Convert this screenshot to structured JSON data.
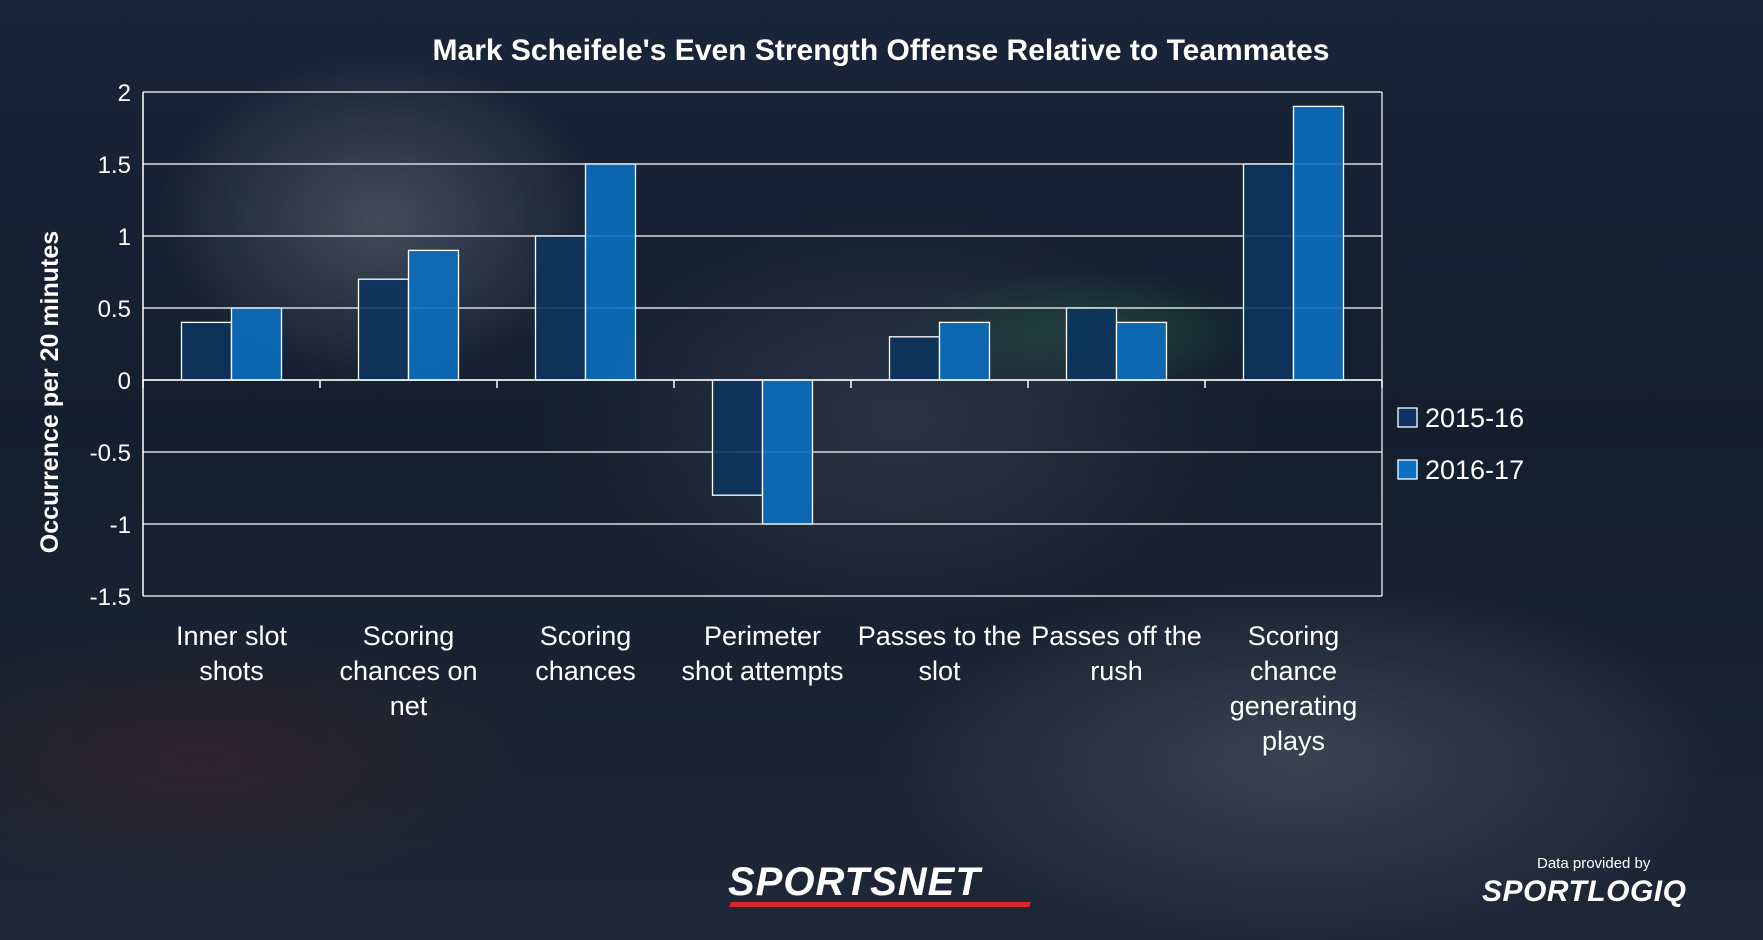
{
  "chart_data": {
    "type": "bar",
    "title": "Mark Scheifele's Even Strength Offense Relative to Teammates",
    "ylabel": "Occurrence per 20 minutes",
    "xlabel": "",
    "ylim": [
      -1.5,
      2
    ],
    "yticks": [
      2,
      1.5,
      1,
      0.5,
      0,
      -0.5,
      -1,
      -1.5
    ],
    "ytick_labels": [
      "2",
      "1.5",
      "1",
      "0.5",
      "0",
      "-0.5",
      "-1",
      "-1.5"
    ],
    "grid": true,
    "legend_position": "right",
    "categories": [
      [
        "Inner slot",
        "shots"
      ],
      [
        "Scoring",
        "chances on",
        "net"
      ],
      [
        "Scoring",
        "chances"
      ],
      [
        "Perimeter",
        "shot attempts"
      ],
      [
        "Passes to the",
        "slot"
      ],
      [
        "Passes off the",
        "rush"
      ],
      [
        "Scoring",
        "chance",
        "generating",
        "plays"
      ]
    ],
    "series": [
      {
        "name": "2015-16",
        "color": "#0d3460",
        "values": [
          0.4,
          0.7,
          1.0,
          -0.8,
          0.3,
          0.5,
          1.5
        ]
      },
      {
        "name": "2016-17",
        "color": "#0a6fc2",
        "values": [
          0.5,
          0.9,
          1.5,
          -1.0,
          0.4,
          0.4,
          1.9
        ]
      }
    ]
  },
  "branding": {
    "sportsnet": "SPORTSNET",
    "credit_label": "Data provided by",
    "sportlogiq": "SPORTLOGIQ"
  }
}
